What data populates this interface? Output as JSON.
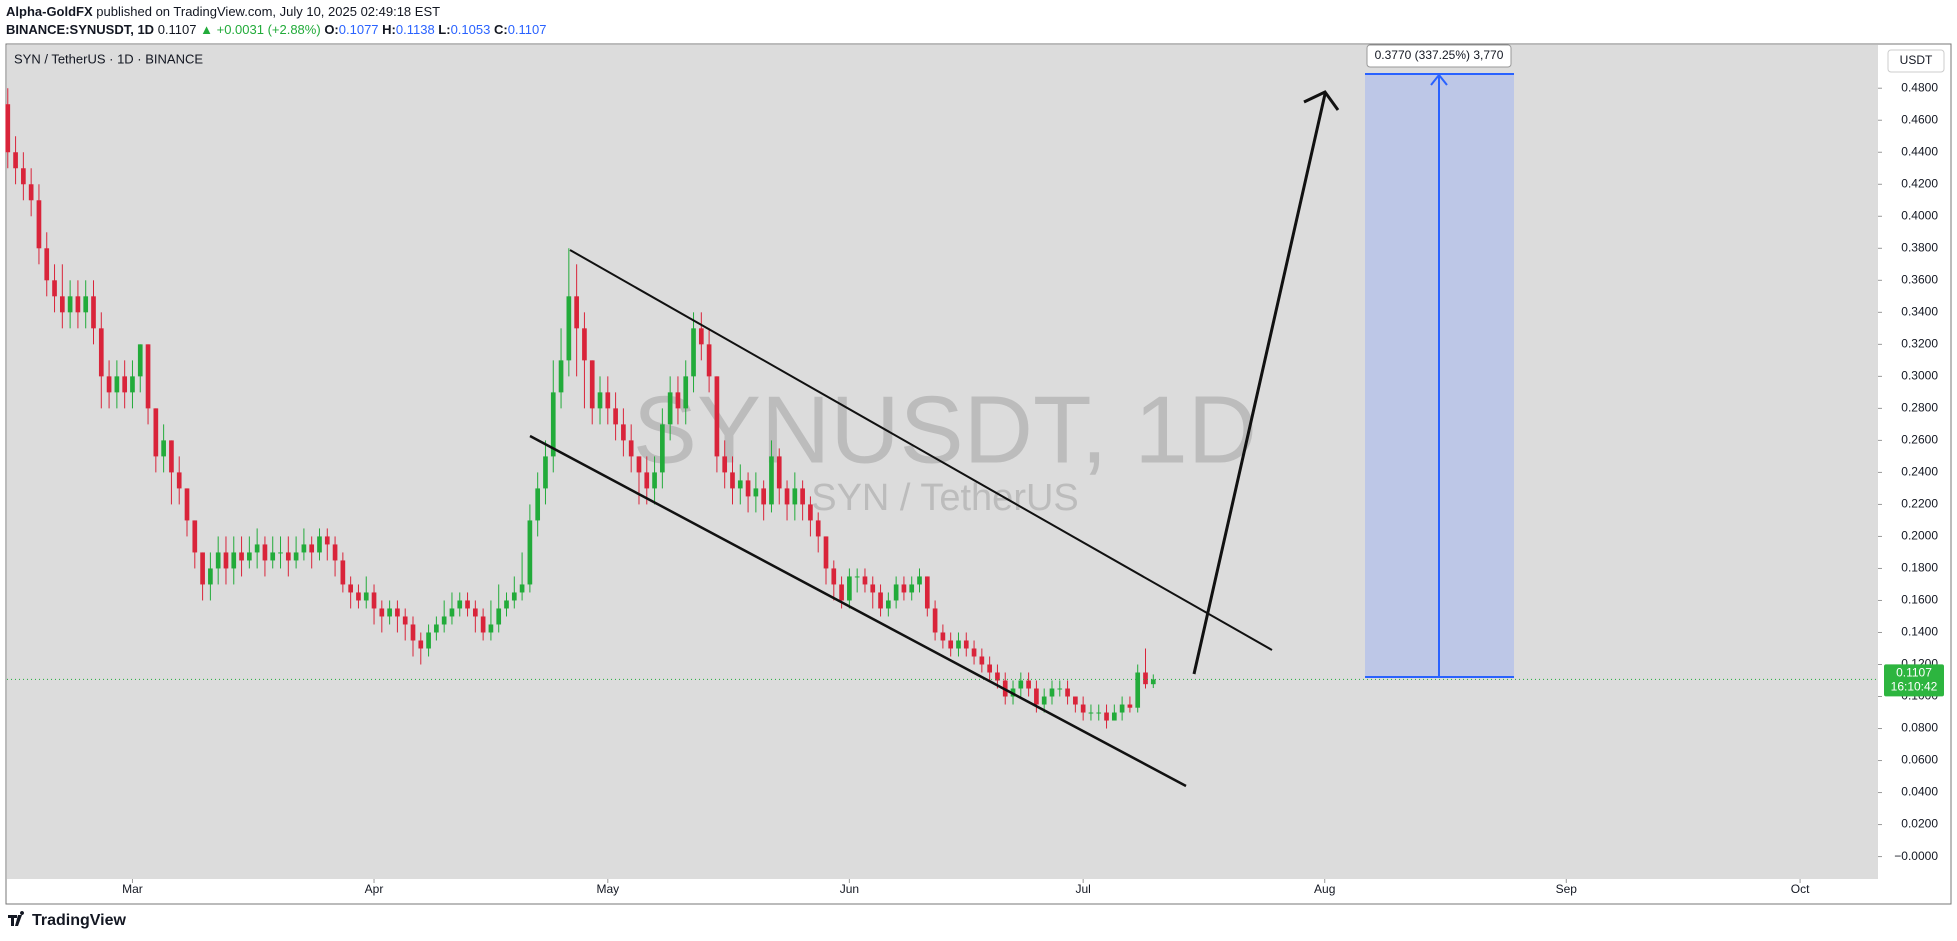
{
  "header": {
    "author": "Alpha-GoldFX",
    "published": "published on TradingView.com, July 10, 2025 02:49:18 EST",
    "symbol": "BINANCE:SYNUSDT, 1D",
    "change": "▲ +0.0031 (+2.88%)",
    "ohlc_labels": [
      "O:",
      "H:",
      "L:",
      "C:"
    ]
  },
  "chart_data": {
    "type": "candlestick",
    "title": "SYN / TetherUS · 1D · BINANCE",
    "watermark": "SYNUSDT, 1D",
    "watermark_sub": "SYN / TetherUS",
    "currency": "USDT",
    "countdown": "16:10:42",
    "projection_label": "0.3770 (337.25%) 3,770",
    "up_color": "#22ab3a",
    "down_color": "#d9243a",
    "grid": false,
    "xlim": [
      -0.1,
      240
    ],
    "xticks": [
      {
        "value": 16,
        "label": "Mar"
      },
      {
        "value": 47,
        "label": "Apr"
      },
      {
        "value": 77,
        "label": "May"
      },
      {
        "value": 108,
        "label": "Jun"
      },
      {
        "value": 138,
        "label": "Jul"
      },
      {
        "value": 169,
        "label": "Aug"
      },
      {
        "value": 200,
        "label": "Sep"
      },
      {
        "value": 230,
        "label": "Oct"
      }
    ],
    "ylim": [
      -0.014,
      0.507
    ],
    "yticks": [
      {
        "value": 0,
        "label": "−0.0000"
      },
      {
        "value": 0.02,
        "label": "0.0200"
      },
      {
        "value": 0.04,
        "label": "0.0400"
      },
      {
        "value": 0.06,
        "label": "0.0600"
      },
      {
        "value": 0.08,
        "label": "0.0800"
      },
      {
        "value": 0.1,
        "label": "0.1000"
      },
      {
        "value": 0.12,
        "label": "0.1200"
      },
      {
        "value": 0.14,
        "label": "0.1400"
      },
      {
        "value": 0.16,
        "label": "0.1600"
      },
      {
        "value": 0.18,
        "label": "0.1800"
      },
      {
        "value": 0.2,
        "label": "0.2000"
      },
      {
        "value": 0.22,
        "label": "0.2200"
      },
      {
        "value": 0.24,
        "label": "0.2400"
      },
      {
        "value": 0.26,
        "label": "0.2600"
      },
      {
        "value": 0.28,
        "label": "0.2800"
      },
      {
        "value": 0.3,
        "label": "0.3000"
      },
      {
        "value": 0.32,
        "label": "0.3200"
      },
      {
        "value": 0.34,
        "label": "0.3400"
      },
      {
        "value": 0.36,
        "label": "0.3600"
      },
      {
        "value": 0.38,
        "label": "0.3800"
      },
      {
        "value": 0.4,
        "label": "0.4000"
      },
      {
        "value": 0.42,
        "label": "0.4200"
      },
      {
        "value": 0.44,
        "label": "0.4400"
      },
      {
        "value": 0.46,
        "label": "0.4600"
      },
      {
        "value": 0.48,
        "label": "0.4800"
      }
    ],
    "open": [
      0.47,
      0.44,
      0.43,
      0.42,
      0.41,
      0.38,
      0.36,
      0.35,
      0.34,
      0.35,
      0.34,
      0.35,
      0.33,
      0.3,
      0.29,
      0.3,
      0.29,
      0.3,
      0.32,
      0.28,
      0.25,
      0.26,
      0.24,
      0.23,
      0.21,
      0.19,
      0.17,
      0.18,
      0.19,
      0.18,
      0.19,
      0.185,
      0.19,
      0.195,
      0.185,
      0.19,
      0.19,
      0.185,
      0.19,
      0.195,
      0.19,
      0.2,
      0.195,
      0.185,
      0.17,
      0.165,
      0.16,
      0.165,
      0.155,
      0.15,
      0.155,
      0.15,
      0.145,
      0.135,
      0.13,
      0.14,
      0.145,
      0.15,
      0.155,
      0.16,
      0.155,
      0.15,
      0.14,
      0.145,
      0.155,
      0.16,
      0.165,
      0.17,
      0.21,
      0.23,
      0.25,
      0.29,
      0.31,
      0.35,
      0.33,
      0.31,
      0.28,
      0.29,
      0.28,
      0.27,
      0.26,
      0.25,
      0.24,
      0.23,
      0.24,
      0.27,
      0.29,
      0.28,
      0.3,
      0.33,
      0.32,
      0.3,
      0.25,
      0.24,
      0.23,
      0.235,
      0.225,
      0.23,
      0.22,
      0.25,
      0.23,
      0.22,
      0.23,
      0.22,
      0.21,
      0.2,
      0.18,
      0.17,
      0.16,
      0.175,
      0.175,
      0.17,
      0.165,
      0.155,
      0.16,
      0.17,
      0.165,
      0.17,
      0.175,
      0.155,
      0.14,
      0.135,
      0.13,
      0.135,
      0.13,
      0.125,
      0.12,
      0.115,
      0.11,
      0.1,
      0.105,
      0.11,
      0.105,
      0.095,
      0.1,
      0.105,
      0.105,
      0.1,
      0.095,
      0.09,
      0.09,
      0.09,
      0.085,
      0.09,
      0.095,
      0.093,
      0.115,
      0.1077
    ],
    "high": [
      0.48,
      0.45,
      0.44,
      0.43,
      0.42,
      0.39,
      0.37,
      0.37,
      0.36,
      0.36,
      0.36,
      0.36,
      0.34,
      0.31,
      0.31,
      0.31,
      0.31,
      0.32,
      0.32,
      0.28,
      0.27,
      0.26,
      0.25,
      0.23,
      0.21,
      0.19,
      0.19,
      0.2,
      0.2,
      0.2,
      0.2,
      0.2,
      0.205,
      0.2,
      0.2,
      0.2,
      0.2,
      0.2,
      0.205,
      0.2,
      0.205,
      0.205,
      0.2,
      0.19,
      0.175,
      0.17,
      0.175,
      0.17,
      0.16,
      0.16,
      0.16,
      0.155,
      0.15,
      0.14,
      0.145,
      0.15,
      0.16,
      0.165,
      0.165,
      0.165,
      0.16,
      0.155,
      0.16,
      0.17,
      0.165,
      0.175,
      0.19,
      0.22,
      0.24,
      0.26,
      0.31,
      0.33,
      0.38,
      0.37,
      0.34,
      0.31,
      0.3,
      0.3,
      0.29,
      0.28,
      0.27,
      0.25,
      0.25,
      0.25,
      0.28,
      0.3,
      0.3,
      0.31,
      0.34,
      0.34,
      0.33,
      0.3,
      0.26,
      0.25,
      0.245,
      0.24,
      0.24,
      0.235,
      0.26,
      0.255,
      0.235,
      0.24,
      0.235,
      0.225,
      0.215,
      0.2,
      0.185,
      0.175,
      0.18,
      0.18,
      0.18,
      0.175,
      0.17,
      0.165,
      0.175,
      0.175,
      0.175,
      0.18,
      0.175,
      0.16,
      0.145,
      0.14,
      0.14,
      0.14,
      0.135,
      0.13,
      0.125,
      0.12,
      0.115,
      0.11,
      0.115,
      0.115,
      0.11,
      0.105,
      0.11,
      0.11,
      0.11,
      0.1,
      0.1,
      0.095,
      0.095,
      0.095,
      0.095,
      0.1,
      0.1,
      0.12,
      0.13,
      0.1138
    ],
    "low": [
      0.43,
      0.42,
      0.41,
      0.4,
      0.37,
      0.35,
      0.34,
      0.33,
      0.33,
      0.33,
      0.33,
      0.32,
      0.28,
      0.28,
      0.28,
      0.28,
      0.28,
      0.29,
      0.27,
      0.24,
      0.24,
      0.22,
      0.22,
      0.2,
      0.18,
      0.16,
      0.16,
      0.17,
      0.17,
      0.17,
      0.175,
      0.18,
      0.18,
      0.175,
      0.18,
      0.18,
      0.175,
      0.18,
      0.185,
      0.18,
      0.185,
      0.185,
      0.175,
      0.165,
      0.155,
      0.155,
      0.155,
      0.145,
      0.14,
      0.145,
      0.14,
      0.135,
      0.125,
      0.12,
      0.125,
      0.135,
      0.14,
      0.145,
      0.15,
      0.15,
      0.14,
      0.135,
      0.135,
      0.14,
      0.15,
      0.155,
      0.16,
      0.165,
      0.2,
      0.22,
      0.24,
      0.28,
      0.3,
      0.3,
      0.28,
      0.27,
      0.27,
      0.27,
      0.26,
      0.25,
      0.24,
      0.22,
      0.22,
      0.22,
      0.23,
      0.26,
      0.27,
      0.27,
      0.29,
      0.31,
      0.29,
      0.24,
      0.23,
      0.22,
      0.22,
      0.215,
      0.215,
      0.21,
      0.215,
      0.22,
      0.21,
      0.21,
      0.21,
      0.2,
      0.19,
      0.17,
      0.16,
      0.155,
      0.155,
      0.165,
      0.165,
      0.155,
      0.15,
      0.15,
      0.155,
      0.16,
      0.16,
      0.165,
      0.15,
      0.135,
      0.13,
      0.125,
      0.125,
      0.125,
      0.12,
      0.115,
      0.11,
      0.105,
      0.095,
      0.095,
      0.1,
      0.1,
      0.09,
      0.09,
      0.095,
      0.1,
      0.095,
      0.09,
      0.085,
      0.085,
      0.085,
      0.08,
      0.085,
      0.085,
      0.09,
      0.09,
      0.105,
      0.1053
    ],
    "close": [
      0.44,
      0.43,
      0.42,
      0.41,
      0.38,
      0.36,
      0.35,
      0.34,
      0.35,
      0.34,
      0.35,
      0.33,
      0.3,
      0.29,
      0.3,
      0.29,
      0.3,
      0.32,
      0.28,
      0.25,
      0.26,
      0.24,
      0.23,
      0.21,
      0.19,
      0.17,
      0.18,
      0.19,
      0.18,
      0.19,
      0.185,
      0.19,
      0.195,
      0.185,
      0.19,
      0.19,
      0.185,
      0.19,
      0.195,
      0.19,
      0.2,
      0.195,
      0.185,
      0.17,
      0.165,
      0.16,
      0.165,
      0.155,
      0.15,
      0.155,
      0.15,
      0.145,
      0.135,
      0.13,
      0.14,
      0.145,
      0.15,
      0.155,
      0.16,
      0.155,
      0.15,
      0.14,
      0.145,
      0.155,
      0.16,
      0.165,
      0.17,
      0.21,
      0.23,
      0.25,
      0.29,
      0.31,
      0.35,
      0.33,
      0.31,
      0.28,
      0.29,
      0.28,
      0.27,
      0.26,
      0.25,
      0.24,
      0.23,
      0.24,
      0.27,
      0.29,
      0.28,
      0.3,
      0.33,
      0.32,
      0.3,
      0.25,
      0.24,
      0.23,
      0.235,
      0.225,
      0.23,
      0.22,
      0.25,
      0.23,
      0.22,
      0.23,
      0.22,
      0.21,
      0.2,
      0.18,
      0.17,
      0.16,
      0.175,
      0.175,
      0.17,
      0.165,
      0.155,
      0.16,
      0.17,
      0.165,
      0.17,
      0.175,
      0.155,
      0.14,
      0.135,
      0.13,
      0.135,
      0.13,
      0.125,
      0.12,
      0.115,
      0.11,
      0.1,
      0.105,
      0.11,
      0.105,
      0.095,
      0.1,
      0.105,
      0.105,
      0.1,
      0.095,
      0.09,
      0.09,
      0.09,
      0.085,
      0.09,
      0.095,
      0.093,
      0.115,
      0.1077,
      0.1107
    ]
  },
  "footer": {
    "brand": "TradingView"
  }
}
